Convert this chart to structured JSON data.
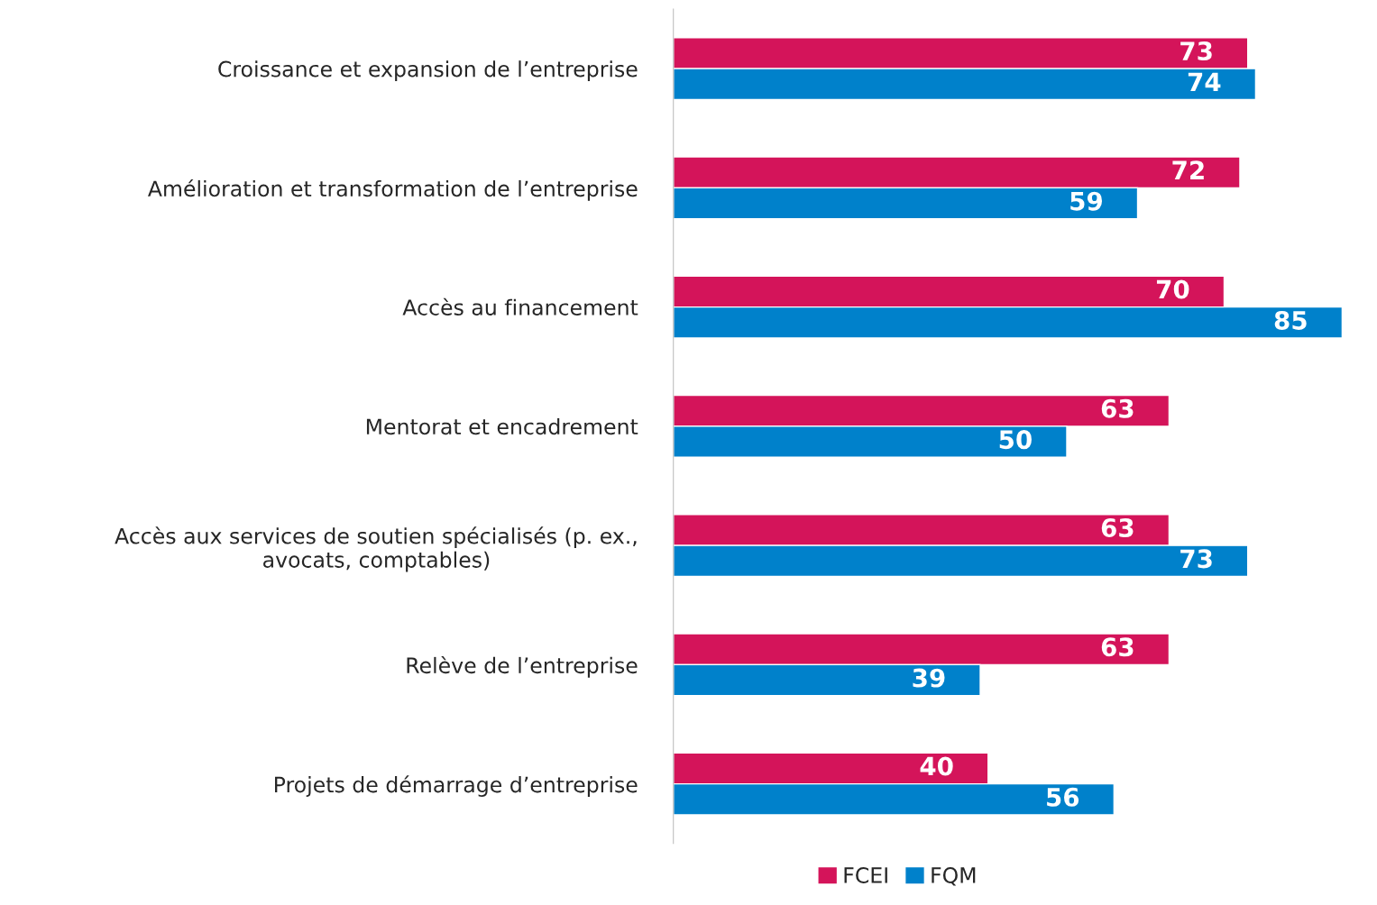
{
  "chart_data": {
    "type": "bar",
    "orientation": "horizontal",
    "categories": [
      "Croissance et expansion de l’entreprise",
      "Amélioration et transformation de l’entreprise",
      "Accès au financement",
      "Mentorat et encadrement",
      "Accès aux services de soutien spécialisés (p. ex.,\navocats, comptables)",
      "Relève de l’entreprise",
      "Projets de démarrage d’entreprise"
    ],
    "series": [
      {
        "name": "FCEI",
        "color": "#d4145a",
        "values": [
          73,
          72,
          70,
          63,
          63,
          63,
          40
        ]
      },
      {
        "name": "FQM",
        "color": "#0081cb",
        "values": [
          74,
          59,
          85,
          50,
          73,
          39,
          56
        ]
      }
    ],
    "data_labels": true,
    "legend": "bottom",
    "grid": false
  }
}
